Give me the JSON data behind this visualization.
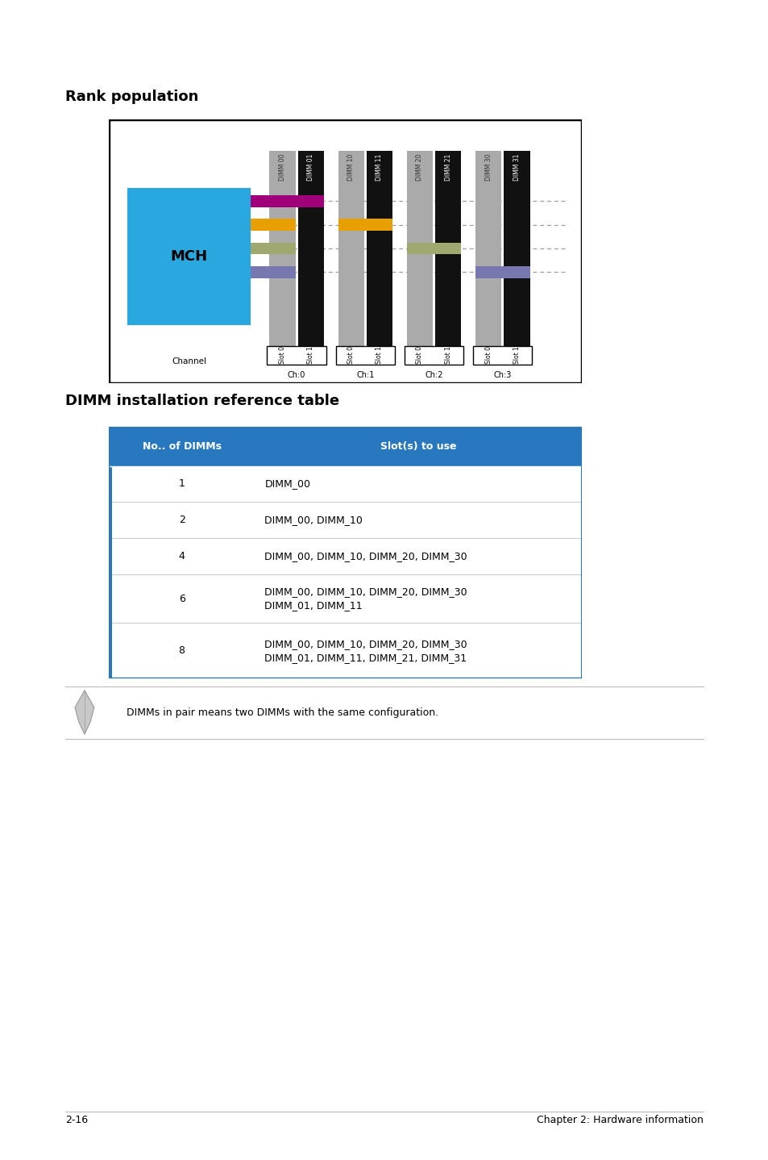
{
  "title_rank": "Rank population",
  "title_dimm": "DIMM installation reference table",
  "page_footer_left": "2-16",
  "page_footer_right": "Chapter 2: Hardware information",
  "note_text": "DIMMs in pair means two DIMMs with the same configuration.",
  "table_header": [
    "No.. of DIMMs",
    "Slot(s) to use"
  ],
  "table_rows": [
    [
      "1",
      "DIMM_00"
    ],
    [
      "2",
      "DIMM_00, DIMM_10"
    ],
    [
      "4",
      "DIMM_00, DIMM_10, DIMM_20, DIMM_30"
    ],
    [
      "6",
      "DIMM_00, DIMM_10, DIMM_20, DIMM_30\nDIMM_01, DIMM_11"
    ],
    [
      "8",
      "DIMM_00, DIMM_10, DIMM_20, DIMM_30\nDIMM_01, DIMM_11, DIMM_21, DIMM_31"
    ]
  ],
  "header_bg": "#2878C0",
  "header_fg": "#FFFFFF",
  "border_color": "#2878C0",
  "mch_color": "#29A8E0",
  "slot_gray": "#AAAAAA",
  "slot_black": "#111111",
  "bar_colors": [
    "#A0007A",
    "#E8A000",
    "#A0A870",
    "#7878B0"
  ],
  "ch_labels": [
    "Ch:0",
    "Ch:1",
    "Ch:2",
    "Ch:3"
  ],
  "dimm_labels": [
    "DIMM 00",
    "DIMM 01",
    "DIMM 10",
    "DIMM 11",
    "DIMM 20",
    "DIMM 21",
    "DIMM 30",
    "DIMM 31"
  ]
}
